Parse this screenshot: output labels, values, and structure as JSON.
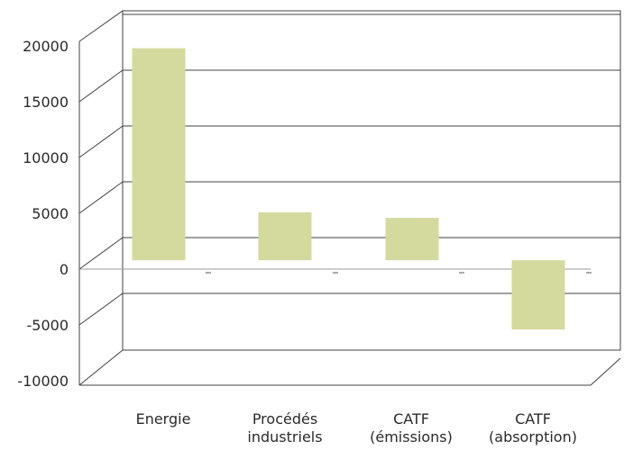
{
  "chart_data": {
    "type": "bar",
    "title": "",
    "xlabel": "",
    "ylabel": "",
    "ylim": [
      -10000,
      20000
    ],
    "yticks": [
      20000,
      15000,
      10000,
      5000,
      0,
      -5000,
      -10000
    ],
    "grid": true,
    "categories": [
      [
        "Energie"
      ],
      [
        "Procédés",
        "industriels"
      ],
      [
        "CATF",
        "(émissions)"
      ],
      [
        "CATF",
        "(absorption)"
      ]
    ],
    "values": [
      19000,
      4300,
      3800,
      -6200
    ],
    "colors": {
      "bar": "#d4d99e",
      "grid": "#404040"
    }
  }
}
